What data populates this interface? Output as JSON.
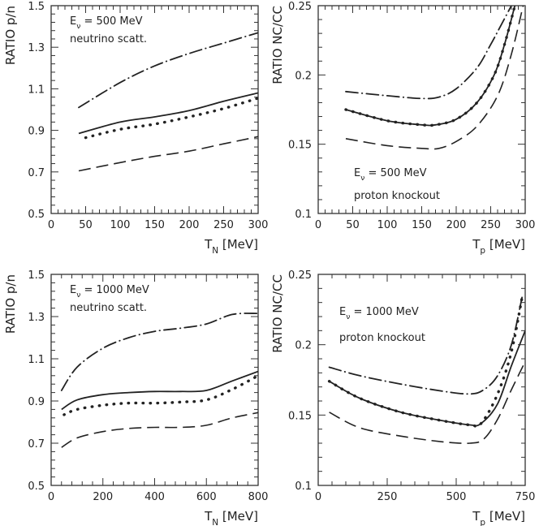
{
  "chart_data": [
    {
      "type": "line",
      "xlabel": "T_N [MeV]",
      "ylabel": "RATIO p/n",
      "xlim": [
        0,
        300
      ],
      "ylim": [
        0.5,
        1.5
      ],
      "xticks": [
        0,
        50,
        100,
        150,
        200,
        250,
        300
      ],
      "yticks": [
        0.5,
        0.7,
        0.9,
        1.1,
        1.3,
        1.5
      ],
      "ytick_labels": [
        "0.5",
        "0.7",
        "0.9",
        "1.1",
        "1.3",
        "1.5"
      ],
      "grid": false,
      "annotations": [
        "E_ν = 500 MeV",
        "neutrino scatt."
      ],
      "series": [
        {
          "style": "dashdot",
          "x": [
            40,
            100,
            150,
            200,
            250,
            300
          ],
          "y": [
            1.01,
            1.13,
            1.21,
            1.27,
            1.32,
            1.37
          ]
        },
        {
          "style": "solid",
          "x": [
            40,
            100,
            150,
            200,
            250,
            300
          ],
          "y": [
            0.885,
            0.94,
            0.965,
            0.995,
            1.04,
            1.08
          ]
        },
        {
          "style": "dotted",
          "x": [
            50,
            100,
            150,
            200,
            250,
            300
          ],
          "y": [
            0.865,
            0.905,
            0.93,
            0.965,
            1.005,
            1.055
          ]
        },
        {
          "style": "dashed",
          "x": [
            40,
            100,
            150,
            200,
            250,
            300
          ],
          "y": [
            0.705,
            0.745,
            0.775,
            0.8,
            0.835,
            0.87
          ]
        }
      ]
    },
    {
      "type": "line",
      "xlabel": "T_p [MeV]",
      "ylabel": "RATIO NC/CC",
      "xlim": [
        0,
        300
      ],
      "ylim": [
        0.1,
        0.25
      ],
      "xticks": [
        0,
        50,
        100,
        150,
        200,
        250,
        300
      ],
      "yticks": [
        0.1,
        0.15,
        0.2,
        0.25
      ],
      "ytick_labels": [
        "0.1",
        "0.15",
        "0.2",
        "0.25"
      ],
      "grid": false,
      "annotations": [
        "E_ν = 500 MeV",
        "proton knockout"
      ],
      "series": [
        {
          "style": "dashdot",
          "x": [
            40,
            100,
            150,
            175,
            200,
            230,
            250,
            265,
            280
          ],
          "y": [
            0.188,
            0.185,
            0.183,
            0.184,
            0.19,
            0.205,
            0.222,
            0.236,
            0.25
          ]
        },
        {
          "style": "solid",
          "x": [
            40,
            100,
            150,
            170,
            200,
            230,
            255,
            270,
            285
          ],
          "y": [
            0.175,
            0.167,
            0.164,
            0.164,
            0.168,
            0.18,
            0.2,
            0.222,
            0.25
          ]
        },
        {
          "style": "dotted",
          "x": [
            40,
            100,
            150,
            170,
            200,
            230,
            255,
            270,
            285
          ],
          "y": [
            0.175,
            0.167,
            0.164,
            0.164,
            0.168,
            0.18,
            0.2,
            0.222,
            0.25
          ]
        },
        {
          "style": "dashed",
          "x": [
            40,
            100,
            150,
            175,
            200,
            230,
            260,
            280,
            297
          ],
          "y": [
            0.154,
            0.149,
            0.147,
            0.147,
            0.152,
            0.163,
            0.185,
            0.215,
            0.25
          ]
        }
      ]
    },
    {
      "type": "line",
      "xlabel": "T_N [MeV]",
      "ylabel": "RATIO p/n",
      "xlim": [
        0,
        800
      ],
      "ylim": [
        0.5,
        1.5
      ],
      "xticks": [
        0,
        200,
        400,
        600,
        800
      ],
      "yticks": [
        0.5,
        0.7,
        0.9,
        1.1,
        1.3,
        1.5
      ],
      "ytick_labels": [
        "0.5",
        "0.7",
        "0.9",
        "1.1",
        "1.3",
        "1.5"
      ],
      "grid": false,
      "annotations": [
        "E_ν = 1000 MeV",
        "neutrino scatt."
      ],
      "series": [
        {
          "style": "dashdot",
          "x": [
            40,
            100,
            200,
            300,
            400,
            500,
            600,
            700,
            800
          ],
          "y": [
            0.95,
            1.06,
            1.15,
            1.2,
            1.23,
            1.245,
            1.265,
            1.31,
            1.315
          ]
        },
        {
          "style": "solid",
          "x": [
            40,
            100,
            200,
            300,
            400,
            500,
            600,
            700,
            800
          ],
          "y": [
            0.86,
            0.905,
            0.93,
            0.94,
            0.945,
            0.945,
            0.95,
            0.995,
            1.04
          ]
        },
        {
          "style": "dotted",
          "x": [
            50,
            100,
            200,
            300,
            400,
            500,
            600,
            700,
            800
          ],
          "y": [
            0.835,
            0.86,
            0.88,
            0.89,
            0.89,
            0.895,
            0.905,
            0.955,
            1.02
          ]
        },
        {
          "style": "dashed",
          "x": [
            40,
            100,
            200,
            300,
            400,
            500,
            600,
            700,
            800
          ],
          "y": [
            0.68,
            0.725,
            0.755,
            0.77,
            0.775,
            0.775,
            0.785,
            0.82,
            0.845
          ]
        }
      ]
    },
    {
      "type": "line",
      "xlabel": "T_p [MeV]",
      "ylabel": "RATIO NC/CC",
      "xlim": [
        0,
        750
      ],
      "ylim": [
        0.1,
        0.25
      ],
      "xticks": [
        0,
        250,
        500,
        750
      ],
      "yticks": [
        0.1,
        0.15,
        0.2,
        0.25
      ],
      "ytick_labels": [
        "0.1",
        "0.15",
        "0.2",
        "0.25"
      ],
      "grid": false,
      "annotations": [
        "E_ν = 1000 MeV",
        "proton knockout"
      ],
      "series": [
        {
          "style": "dashdot",
          "x": [
            40,
            150,
            300,
            450,
            550,
            600,
            650,
            700,
            740
          ],
          "y": [
            0.184,
            0.178,
            0.172,
            0.167,
            0.165,
            0.168,
            0.178,
            0.2,
            0.235
          ]
        },
        {
          "style": "solid",
          "x": [
            40,
            150,
            300,
            450,
            550,
            590,
            650,
            700,
            750
          ],
          "y": [
            0.174,
            0.162,
            0.152,
            0.146,
            0.143,
            0.144,
            0.158,
            0.185,
            0.21
          ]
        },
        {
          "style": "dotted",
          "x": [
            40,
            150,
            300,
            450,
            550,
            590,
            650,
            700,
            740
          ],
          "y": [
            0.174,
            0.162,
            0.152,
            0.146,
            0.143,
            0.144,
            0.165,
            0.195,
            0.235
          ]
        },
        {
          "style": "dashed",
          "x": [
            40,
            150,
            300,
            450,
            550,
            600,
            650,
            700,
            750
          ],
          "y": [
            0.152,
            0.141,
            0.135,
            0.131,
            0.13,
            0.133,
            0.147,
            0.168,
            0.188
          ]
        }
      ]
    }
  ]
}
